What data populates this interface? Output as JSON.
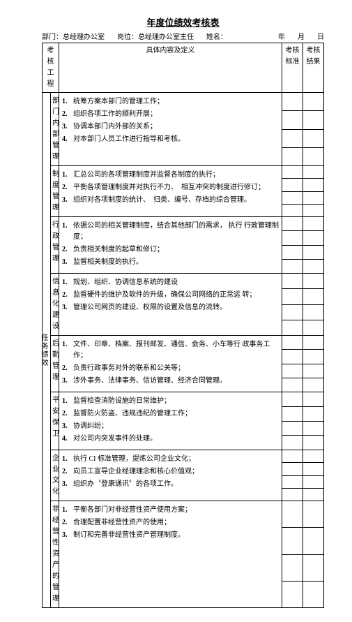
{
  "title": "年度位绩效考核表",
  "meta": {
    "dept_label": "部门：",
    "dept": "总经理办公室",
    "pos_label": "岗位：",
    "pos": "总经理办公室主任",
    "name_label": "姓名：",
    "date_y": "年",
    "date_m": "月",
    "date_d": "日"
  },
  "headers": {
    "col1": "考核工程",
    "col3": "具体内容及定义",
    "col4": "考核标准",
    "col5": "考核结果"
  },
  "maincat": "任务绩效",
  "sections": [
    {
      "name": "部门内 部管理",
      "items": [
        "统筹方案本部门的管理工作；",
        "组织各项工作的顺利开展；",
        "协调本部门内外部的关系；",
        "对本部门人员工作进行指导和考核。"
      ],
      "rows": 4
    },
    {
      "name": "制度管理",
      "items": [
        "汇总公司的各项管理制度并监督各制度的执行；",
        "平衡各项管理制度并对执行不力、　相互冲突的制度进行修订；",
        "组织对各项制度的统计、　归类、编号、存档的综合管理。"
      ],
      "rows": 4
    },
    {
      "name": "行政管理",
      "items": [
        "依据公司的相关管理制度，结合其他部门的需求， 执行 行政管理制度；",
        "负责相关制度的起草和修订；",
        "监督相关制度的执行。"
      ],
      "rows": 4
    },
    {
      "name": "信息化建设",
      "items": [
        "规划、组织、协调信息系统的建设",
        "监督硬件的维护及软件的升级，确保公司网络的正常运 转；",
        "管理公司网页的建设、权限的设置及信息的流转。"
      ],
      "rows": 4
    },
    {
      "name": "后勤管理",
      "items": [
        "文件、印章、档案、报刊邮发、通信、会务、小车等行 政事务工作；",
        "负责行政事务对外的联系和公关等；",
        "涉外事务、法律事务、信访管理、经济合同管理。"
      ],
      "rows": 4
    },
    {
      "name": "平安保卫",
      "items": [
        "监督检查消防设施的日常维护；",
        "监督防火防盗、违规违纪的管理工作；",
        "协调纠纷；",
        "对公司内突发事件的处理。"
      ],
      "rows": 4
    },
    {
      "name": "企业文化",
      "items": [
        "执行 CI 标准管理，提炼公司企业文化；",
        "向员工宣导企业经理理念和核心价值观；",
        "组织办〝登康通讯〞的各项工作。"
      ],
      "rows": 4
    },
    {
      "name": "非经营性资产的管理",
      "items": [
        "平衡各部门对非经营性资产使用方案；",
        "合理配置非经营性资产的使用；",
        "制订和完善非经营性资产管理制度。"
      ],
      "rows": 4
    }
  ]
}
